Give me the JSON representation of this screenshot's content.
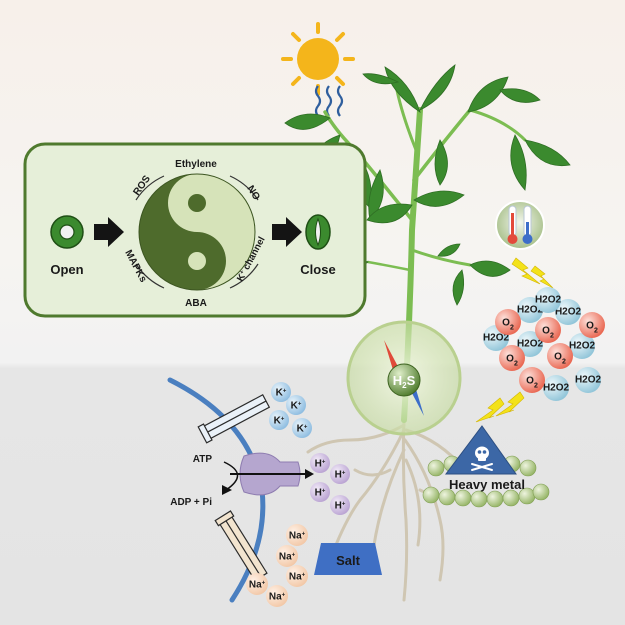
{
  "stomata_panel": {
    "open_label": "Open",
    "close_label": "Close",
    "regulators": {
      "top": "Ethylene",
      "bottom": "ABA",
      "upper_left": "ROS",
      "lower_left": "MAPKs",
      "upper_right": "NO",
      "lower_right_base": "K",
      "lower_right_sup": "+",
      "lower_right_rest": " channel"
    }
  },
  "center": {
    "molecule_base": "H",
    "molecule_sub": "2",
    "molecule_rest": "S"
  },
  "stress": {
    "heavy_metal": "Heavy metal",
    "salt": "Salt"
  },
  "ros_cluster": {
    "o2_base": "O",
    "o2_sub": "2",
    "h2o2_label": "H2O2"
  },
  "membrane": {
    "atp": "ATP",
    "adp": "ADP + Pi",
    "k_base": "K",
    "k_sup": "+",
    "h_base": "H",
    "h_sup": "+",
    "na_base": "Na",
    "na_sup": "+"
  },
  "colors": {
    "panel_bg": "#e6efd9",
    "panel_border": "#4f7a2e",
    "yin_yang_dark": "#4e6b2c",
    "yin_yang_light": "#d6e3b9",
    "leaf": "#3b8a2e",
    "stem": "#7cbd52",
    "root": "#c9c0ad",
    "membrane": "#4a7fc0",
    "k_ion": "#a6cbe8",
    "h_ion": "#c9b6dc",
    "na_ion": "#f7d4b9",
    "o2_ion": "#ef7a6b",
    "h2o2_ion": "#a9d2e0",
    "sun": "#f4b51b",
    "lightning": "#f3e21a",
    "heavy_metal_triangle": "#3c67a6",
    "heavy_metal_balls": "#a9c57b",
    "salt_box": "#3f6fc4"
  }
}
